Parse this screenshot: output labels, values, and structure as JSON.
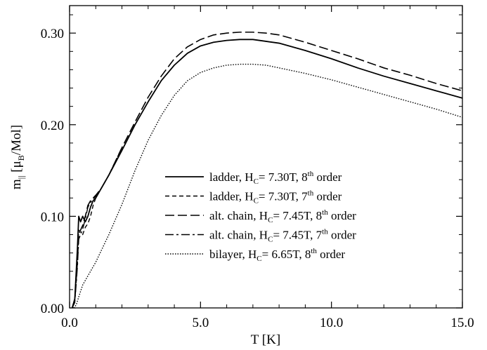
{
  "chart_data": {
    "type": "line",
    "xlabel": "T [K]",
    "ylabel": "m|| [μB/Mol]",
    "ylabel_parts": {
      "main": "m",
      "main_sub": "||",
      "open": " [μ",
      "unit_sub": "B",
      "close": "/Mol]"
    },
    "xlim": [
      0,
      15
    ],
    "ylim": [
      0,
      0.33
    ],
    "xticks": [
      "0.0",
      "5.0",
      "10.0",
      "15.0"
    ],
    "yticks": [
      "0.00",
      "0.10",
      "0.20",
      "0.30"
    ],
    "xtick_values": [
      0,
      5,
      10,
      15
    ],
    "ytick_values": [
      0,
      0.1,
      0.2,
      0.3
    ],
    "grid": false,
    "legend_position": "center-right",
    "series": [
      {
        "name": "ladder, HC= 7.30T, 8th order",
        "label_parts": {
          "a": "ladder, H",
          "sub": "C",
          "b": "= 7.30T, 8",
          "sup": "th",
          "c": " order"
        },
        "dash": "",
        "width": 1.8,
        "x": [
          0.1,
          0.2,
          0.3,
          0.35,
          0.42,
          0.5,
          0.6,
          0.7,
          0.8,
          0.9,
          1.0,
          1.2,
          1.5,
          2.0,
          2.5,
          3.0,
          3.5,
          4.0,
          4.5,
          5.0,
          5.5,
          6.0,
          6.5,
          7.0,
          7.5,
          8.0,
          9.0,
          10.0,
          11.0,
          12.0,
          13.0,
          14.0,
          15.0
        ],
        "y": [
          0.0,
          0.01,
          0.065,
          0.1,
          0.094,
          0.1,
          0.094,
          0.1,
          0.11,
          0.117,
          0.12,
          0.13,
          0.145,
          0.172,
          0.2,
          0.225,
          0.248,
          0.265,
          0.278,
          0.286,
          0.29,
          0.292,
          0.293,
          0.293,
          0.291,
          0.289,
          0.281,
          0.272,
          0.262,
          0.253,
          0.245,
          0.237,
          0.229
        ]
      },
      {
        "name": "ladder, HC= 7.30T, 7th order",
        "label_parts": {
          "a": "ladder, H",
          "sub": "C",
          "b": "= 7.30T, 7",
          "sup": "th",
          "c": " order"
        },
        "dash": "6 4",
        "width": 1.4,
        "x": [
          0.1,
          0.2,
          0.3,
          0.35,
          0.42,
          0.5,
          0.6,
          0.7,
          0.8,
          0.9,
          1.0,
          1.2,
          1.5,
          2.0
        ],
        "y": [
          0.0,
          0.01,
          0.058,
          0.085,
          0.082,
          0.08,
          0.088,
          0.092,
          0.1,
          0.112,
          0.12,
          0.13,
          0.145,
          0.172
        ]
      },
      {
        "name": "alt. chain, HC= 7.45T, 8th order",
        "label_parts": {
          "a": "alt. chain, H",
          "sub": "C",
          "b": "= 7.45T, 8",
          "sup": "th",
          "c": " order"
        },
        "dash": "13 5",
        "width": 1.6,
        "x": [
          0.1,
          0.2,
          0.3,
          0.35,
          0.42,
          0.5,
          0.6,
          0.7,
          0.8,
          0.9,
          1.0,
          1.2,
          1.5,
          2.0,
          2.5,
          3.0,
          3.5,
          4.0,
          4.5,
          5.0,
          5.5,
          6.0,
          6.5,
          7.0,
          7.5,
          8.0,
          9.0,
          10.0,
          11.0,
          12.0,
          13.0,
          14.0,
          15.0
        ],
        "y": [
          0.0,
          0.008,
          0.05,
          0.08,
          0.085,
          0.09,
          0.1,
          0.112,
          0.117,
          0.12,
          0.123,
          0.13,
          0.145,
          0.175,
          0.203,
          0.23,
          0.253,
          0.272,
          0.285,
          0.293,
          0.298,
          0.3,
          0.301,
          0.301,
          0.3,
          0.298,
          0.29,
          0.281,
          0.272,
          0.262,
          0.254,
          0.245,
          0.237
        ]
      },
      {
        "name": "alt. chain, HC= 7.45T, 7th order",
        "label_parts": {
          "a": "alt. chain, H",
          "sub": "C",
          "b": "= 7.45T, 7",
          "sup": "th",
          "c": " order"
        },
        "dash": "12 4 3 4",
        "width": 1.4,
        "x": [
          0.1,
          0.2,
          0.3,
          0.35,
          0.42,
          0.5,
          0.6,
          0.7,
          0.8,
          0.9,
          1.0,
          1.2,
          1.5,
          2.0
        ],
        "y": [
          0.0,
          0.006,
          0.045,
          0.075,
          0.08,
          0.086,
          0.097,
          0.11,
          0.115,
          0.119,
          0.122,
          0.13,
          0.145,
          0.175
        ]
      },
      {
        "name": "bilayer, HC= 6.65T, 8th order",
        "label_parts": {
          "a": "bilayer, H",
          "sub": "C",
          "b": "= 6.65T, 8",
          "sup": "th",
          "c": " order"
        },
        "dash": "1.5 2",
        "width": 1.4,
        "x": [
          0.15,
          0.25,
          0.35,
          0.5,
          0.7,
          1.0,
          1.5,
          2.0,
          2.5,
          3.0,
          3.5,
          4.0,
          4.5,
          5.0,
          5.5,
          6.0,
          6.5,
          7.0,
          7.5,
          8.0,
          9.0,
          10.0,
          11.0,
          12.0,
          13.0,
          14.0,
          15.0
        ],
        "y": [
          0.0,
          0.003,
          0.012,
          0.025,
          0.035,
          0.05,
          0.08,
          0.113,
          0.15,
          0.183,
          0.21,
          0.232,
          0.248,
          0.257,
          0.262,
          0.265,
          0.266,
          0.266,
          0.265,
          0.262,
          0.256,
          0.249,
          0.241,
          0.233,
          0.225,
          0.217,
          0.208
        ]
      }
    ]
  }
}
